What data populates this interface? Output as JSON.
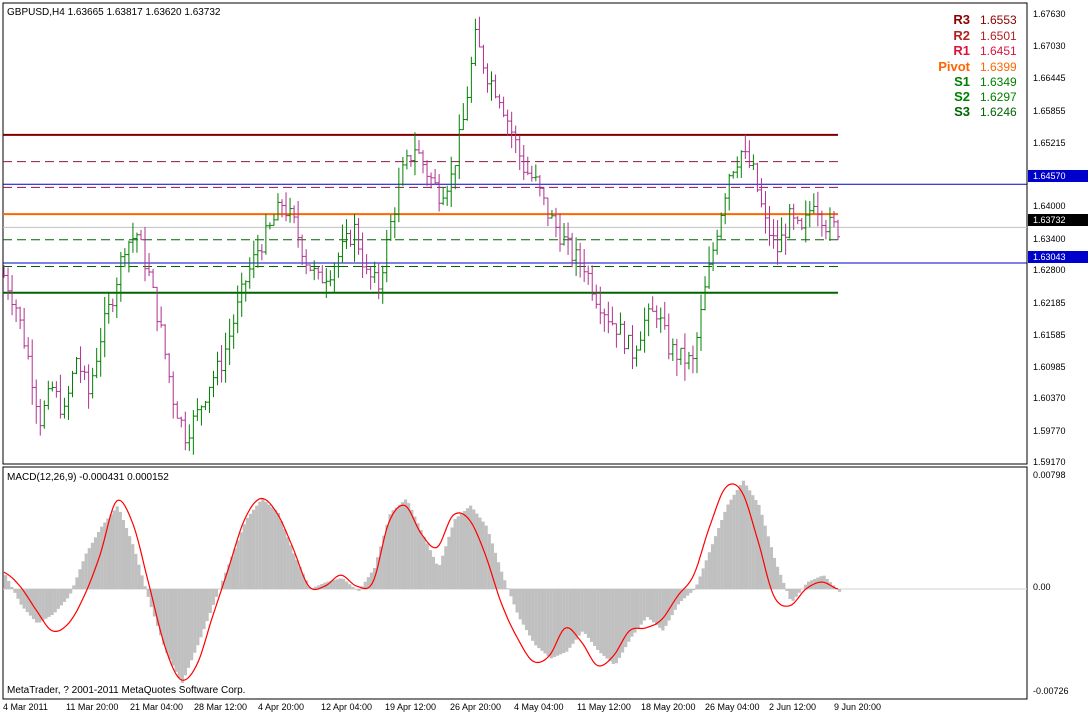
{
  "header": {
    "symbol_info": "GBPUSD,H4  1.63665 1.63817 1.63620 1.63732",
    "macd_info": "MACD(12,26,9) -0.000431 0.000152",
    "copyright": "MetaTrader, ? 2001-2011 MetaQuotes Software Corp."
  },
  "pivots": [
    {
      "label": "R3",
      "value": "1.6553",
      "color": "#8b0000"
    },
    {
      "label": "R2",
      "value": "1.6501",
      "color": "#b22222"
    },
    {
      "label": "R1",
      "value": "1.6451",
      "color": "#dc143c"
    },
    {
      "label": "Pivot",
      "value": "1.6399",
      "color": "#ff6600"
    },
    {
      "label": "S1",
      "value": "1.6349",
      "color": "#008000"
    },
    {
      "label": "S2",
      "value": "1.6297",
      "color": "#008000"
    },
    {
      "label": "S3",
      "value": "1.6246",
      "color": "#006400"
    }
  ],
  "price_axis": [
    "1.67630",
    "1.67030",
    "1.66445",
    "1.65855",
    "1.65215",
    "1.64000",
    "1.63400",
    "1.62800",
    "1.62185",
    "1.61585",
    "1.60985",
    "1.60370",
    "1.59770",
    "1.59170"
  ],
  "price_tags": [
    {
      "value": "1.64570",
      "bg": "#0000cc",
      "fg": "#ffffff"
    },
    {
      "value": "1.63732",
      "bg": "#000000",
      "fg": "#ffffff"
    },
    {
      "value": "1.63043",
      "bg": "#0000cc",
      "fg": "#ffffff"
    }
  ],
  "macd_axis": [
    "0.00798",
    "0.00",
    "-0.00726"
  ],
  "time_axis": [
    "4 Mar 2011",
    "11 Mar 20:00",
    "21 Mar 04:00",
    "28 Mar 12:00",
    "4 Apr 20:00",
    "12 Apr 04:00",
    "19 Apr 12:00",
    "26 Apr 20:00",
    "4 May 04:00",
    "11 May 12:00",
    "18 May 20:00",
    "26 May 04:00",
    "2 Jun 12:00",
    "9 Jun 20:00"
  ],
  "chart_data": {
    "type": "ohlc",
    "symbol": "GBPUSD",
    "timeframe": "H4",
    "ylim": [
      1.5917,
      1.6788
    ],
    "horizontal_lines": [
      {
        "value": 1.6553,
        "color": "#800000",
        "style": "solid"
      },
      {
        "value": 1.6501,
        "color": "#8b1a4a",
        "style": "dashed"
      },
      {
        "value": 1.6451,
        "color": "#8b1a4a",
        "style": "dashed"
      },
      {
        "value": 1.6457,
        "color": "#0000cc",
        "style": "solid"
      },
      {
        "value": 1.6399,
        "color": "#ff6600",
        "style": "solid"
      },
      {
        "value": 1.6349,
        "color": "#006400",
        "style": "dashed"
      },
      {
        "value": 1.6304,
        "color": "#0000cc",
        "style": "solid"
      },
      {
        "value": 1.6297,
        "color": "#006400",
        "style": "dashed"
      },
      {
        "value": 1.6246,
        "color": "#006400",
        "style": "solid"
      }
    ],
    "close_path": [
      1.628,
      1.622,
      1.612,
      1.6,
      1.606,
      1.601,
      1.612,
      1.605,
      1.616,
      1.624,
      1.634,
      1.636,
      1.628,
      1.617,
      1.604,
      1.597,
      1.601,
      1.607,
      1.611,
      1.619,
      1.627,
      1.633,
      1.637,
      1.642,
      1.638,
      1.631,
      1.627,
      1.629,
      1.633,
      1.637,
      1.628,
      1.626,
      1.638,
      1.648,
      1.653,
      1.648,
      1.644,
      1.647,
      1.658,
      1.674,
      1.667,
      1.663,
      1.656,
      1.649,
      1.646,
      1.64,
      1.636,
      1.632,
      1.63,
      1.624,
      1.62,
      1.617,
      1.613,
      1.619,
      1.621,
      1.614,
      1.612,
      1.611,
      1.625,
      1.637,
      1.648,
      1.652,
      1.648,
      1.638,
      1.633,
      1.639,
      1.636,
      1.643,
      1.638,
      1.637
    ],
    "macd_ylim": [
      -0.00726,
      0.00798
    ],
    "macd_hist_path": [
      0.001,
      -0.0012,
      -0.0025,
      -0.0018,
      -0.0005,
      0.0025,
      0.0045,
      0.006,
      0.003,
      -0.001,
      -0.0045,
      -0.0068,
      -0.004,
      -0.001,
      0.002,
      0.005,
      0.0065,
      0.0055,
      0.0025,
      0.0,
      0.0005,
      0.0008,
      -0.0002,
      0.0015,
      0.0055,
      0.0065,
      0.004,
      0.0015,
      0.005,
      0.006,
      0.0045,
      0.001,
      -0.002,
      -0.004,
      -0.005,
      -0.0045,
      -0.003,
      -0.0045,
      -0.0055,
      -0.0035,
      -0.002,
      -0.003,
      -0.001,
      0.0,
      0.003,
      0.006,
      0.0078,
      0.006,
      0.002,
      -0.001,
      0.0005,
      0.001,
      -0.0002
    ],
    "macd_signal_path": [
      0.0012,
      0.0002,
      -0.0015,
      -0.003,
      -0.0025,
      -0.0005,
      0.0025,
      0.0063,
      0.0048,
      0.0005,
      -0.004,
      -0.0065,
      -0.0055,
      -0.002,
      0.0015,
      0.005,
      0.0065,
      0.0055,
      0.003,
      0.0002,
      0.0002,
      0.001,
      0.0002,
      0.0005,
      0.0048,
      0.006,
      0.004,
      0.003,
      0.0053,
      0.005,
      0.0025,
      -0.001,
      -0.0035,
      -0.0052,
      -0.0048,
      -0.0028,
      -0.0038,
      -0.0055,
      -0.0048,
      -0.003,
      -0.0028,
      -0.0022,
      -0.0005,
      0.001,
      0.0045,
      0.0073,
      0.007,
      0.0035,
      -0.0005,
      -0.0012,
      0.0,
      0.0005,
      0.0
    ]
  }
}
